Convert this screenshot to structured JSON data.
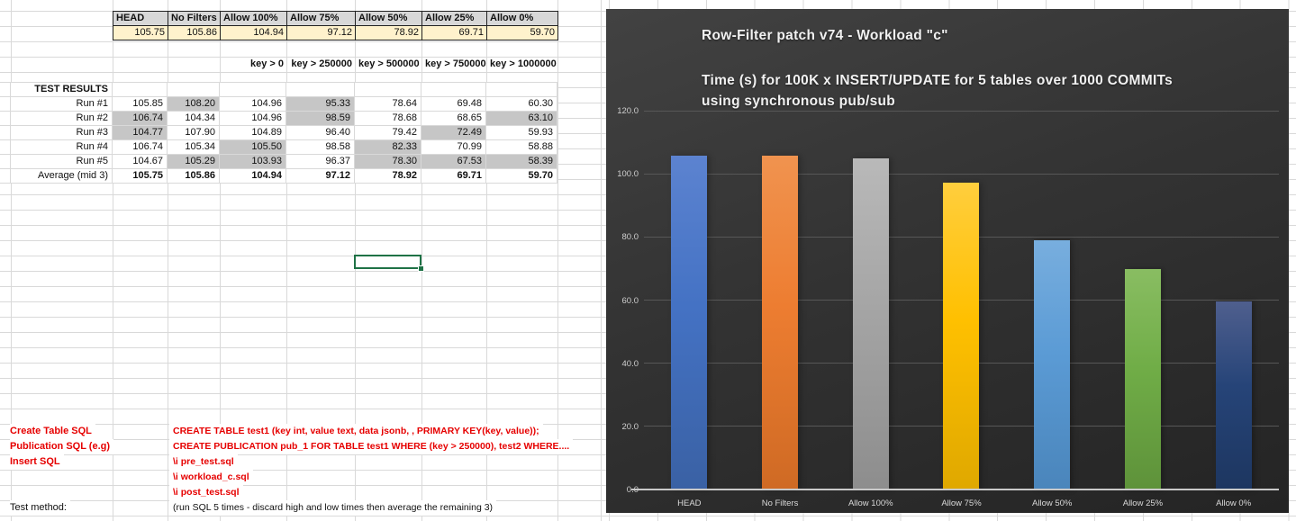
{
  "sheet": {
    "summary": {
      "headers": [
        "HEAD",
        "No Filters",
        "Allow 100%",
        "Allow 75%",
        "Allow 50%",
        "Allow 25%",
        "Allow 0%"
      ],
      "values": [
        "105.75",
        "105.86",
        "104.94",
        "97.12",
        "78.92",
        "69.71",
        "59.70"
      ]
    },
    "key_filters": [
      "key > 0",
      "key > 250000",
      "key > 500000",
      "key > 750000",
      "key > 1000000"
    ],
    "test_results_label": "TEST RESULTS",
    "runs": [
      {
        "label": "Run #1",
        "cells": [
          {
            "v": "105.85"
          },
          {
            "v": "108.20",
            "hl": true
          },
          {
            "v": "104.96"
          },
          {
            "v": "95.33",
            "hl": true
          },
          {
            "v": "78.64"
          },
          {
            "v": "69.48"
          },
          {
            "v": "60.30"
          }
        ]
      },
      {
        "label": "Run #2",
        "cells": [
          {
            "v": "106.74",
            "hl": true
          },
          {
            "v": "104.34"
          },
          {
            "v": "104.96"
          },
          {
            "v": "98.59",
            "hl": true
          },
          {
            "v": "78.68"
          },
          {
            "v": "68.65"
          },
          {
            "v": "63.10",
            "hl": true
          }
        ]
      },
      {
        "label": "Run #3",
        "cells": [
          {
            "v": "104.77",
            "hl": true
          },
          {
            "v": "107.90"
          },
          {
            "v": "104.89"
          },
          {
            "v": "96.40"
          },
          {
            "v": "79.42"
          },
          {
            "v": "72.49",
            "hl": true
          },
          {
            "v": "59.93"
          }
        ]
      },
      {
        "label": "Run #4",
        "cells": [
          {
            "v": "106.74"
          },
          {
            "v": "105.34"
          },
          {
            "v": "105.50",
            "hl": true
          },
          {
            "v": "98.58"
          },
          {
            "v": "82.33",
            "hl": true
          },
          {
            "v": "70.99"
          },
          {
            "v": "58.88"
          }
        ]
      },
      {
        "label": "Run #5",
        "cells": [
          {
            "v": "104.67"
          },
          {
            "v": "105.29",
            "hl": true
          },
          {
            "v": "103.93",
            "hl": true
          },
          {
            "v": "96.37"
          },
          {
            "v": "78.30",
            "hl": true
          },
          {
            "v": "67.53",
            "hl": true
          },
          {
            "v": "58.39",
            "hl": true
          }
        ]
      }
    ],
    "average": {
      "label": "Average (mid 3)",
      "values": [
        "105.75",
        "105.86",
        "104.94",
        "97.12",
        "78.92",
        "69.71",
        "59.70"
      ]
    },
    "sql_rows": [
      {
        "label": "Create Table SQL",
        "text": "CREATE TABLE test1 (key int, value text, data jsonb, , PRIMARY KEY(key, value));",
        "red": true
      },
      {
        "label": "Publication SQL (e.g)",
        "text": "CREATE PUBLICATION pub_1 FOR TABLE test1 WHERE (key > 250000), test2 WHERE....",
        "red": true
      },
      {
        "label": "Insert SQL",
        "text": "\\i pre_test.sql",
        "red": true
      },
      {
        "label": "",
        "text": "\\i workload_c.sql",
        "red": true
      },
      {
        "label": "",
        "text": "\\i post_test.sql",
        "red": true
      },
      {
        "label": "Test method:",
        "text": "(run SQL 5 times - discard high and low times then average the remaining 3)",
        "red": false
      }
    ],
    "colors": {
      "header_bg": "#d8d8d8",
      "input_row_bg": "#fff2cc",
      "discard_highlight": "#c6c6c6",
      "gridline": "#d9d9d9",
      "selection_green": "#1f7246",
      "error_indicator_green": "#2f9e4e",
      "sql_text_red": "#e60000"
    }
  },
  "chart_data": {
    "type": "bar",
    "title": "Row-Filter patch v74 - Workload \"c\"",
    "subtitle_lines": [
      "Time (s) for 100K x INSERT/UPDATE for 5 tables over 1000 COMMITs",
      "using synchronous pub/sub"
    ],
    "categories": [
      "HEAD",
      "No Filters",
      "Allow 100%",
      "Allow 75%",
      "Allow 50%",
      "Allow 25%",
      "Allow 0%"
    ],
    "values": [
      105.75,
      105.86,
      104.94,
      97.12,
      78.92,
      69.71,
      59.7
    ],
    "bars": [
      {
        "color": "#4472C4",
        "top": "#5c83d0",
        "bottom": "#3a61a4"
      },
      {
        "color": "#ED7D31",
        "top": "#f0934f",
        "bottom": "#cf6a24"
      },
      {
        "color": "#A5A5A5",
        "top": "#b9b9b9",
        "bottom": "#8d8d8d"
      },
      {
        "color": "#FFC000",
        "top": "#ffce3d",
        "bottom": "#dfa800"
      },
      {
        "color": "#5B9BD5",
        "top": "#78aede",
        "bottom": "#4a85bb"
      },
      {
        "color": "#70AD47",
        "top": "#89bd62",
        "bottom": "#5e923a"
      },
      {
        "color": "#264478",
        "top": "#4f5f8e",
        "bottom": "#1d3660"
      }
    ],
    "xlabel": "",
    "ylabel": "",
    "ylim": [
      0,
      120
    ],
    "yticks": [
      "0.0",
      "20.0",
      "40.0",
      "60.0",
      "80.0",
      "100.0",
      "120.0"
    ],
    "grid": true,
    "legend": "none",
    "colors": {
      "background": "#333333",
      "gridline": "#575757",
      "axis_line": "#c9c9c9",
      "tick_text": "#cfcfcf",
      "title_text": "#f1f1f1"
    }
  }
}
